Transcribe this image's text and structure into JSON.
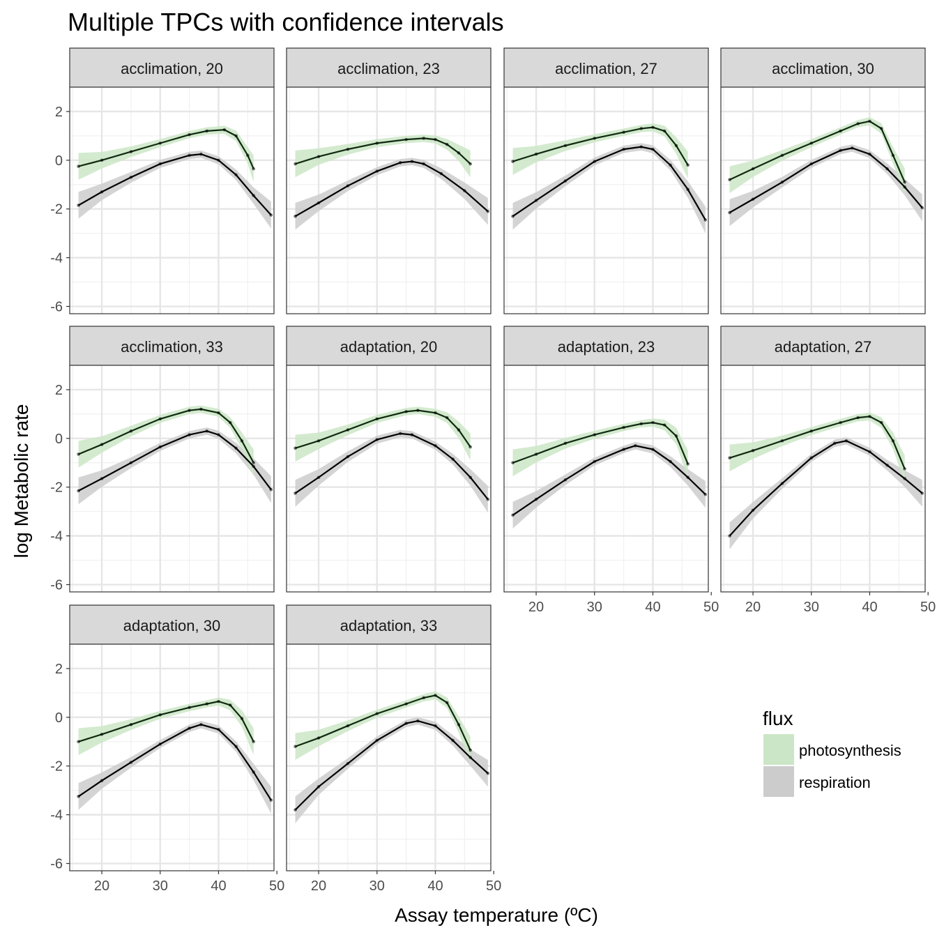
{
  "chart_data": {
    "type": "line",
    "title": "Multiple TPCs with confidence intervals",
    "xlabel": "Assay temperature (ºC)",
    "ylabel": "log Metabolic rate",
    "xlim": [
      14.5,
      49.5
    ],
    "ylim": [
      -6.3,
      3.0
    ],
    "x_ticks": [
      20,
      30,
      40,
      50
    ],
    "y_ticks": [
      2,
      0,
      -2,
      -4,
      -6
    ],
    "grid": true,
    "facet_layout": "wrap, 4 columns",
    "legend": {
      "title": "flux",
      "placement": "right",
      "entries": [
        {
          "label": "photosynthesis",
          "color": "#cbe6c6"
        },
        {
          "label": "respiration",
          "color": "#cccccc"
        }
      ]
    },
    "panels": [
      {
        "label": "acclimation, 20",
        "photosynthesis": {
          "x": [
            16,
            20,
            25,
            30,
            35,
            38,
            41,
            43,
            45,
            46
          ],
          "y": [
            -0.25,
            0.0,
            0.35,
            0.7,
            1.05,
            1.2,
            1.25,
            1.0,
            0.2,
            -0.35
          ]
        },
        "respiration": {
          "x": [
            16,
            20,
            25,
            30,
            35,
            37,
            40,
            43,
            46,
            49
          ],
          "y": [
            -1.85,
            -1.3,
            -0.7,
            -0.15,
            0.2,
            0.25,
            0.0,
            -0.6,
            -1.45,
            -2.25
          ]
        }
      },
      {
        "label": "acclimation, 23",
        "photosynthesis": {
          "x": [
            16,
            20,
            25,
            30,
            35,
            38,
            40,
            42,
            44,
            46
          ],
          "y": [
            -0.15,
            0.15,
            0.45,
            0.7,
            0.85,
            0.9,
            0.85,
            0.65,
            0.3,
            -0.15
          ]
        },
        "respiration": {
          "x": [
            16,
            20,
            25,
            30,
            34,
            36,
            38,
            41,
            45,
            49
          ],
          "y": [
            -2.3,
            -1.75,
            -1.05,
            -0.45,
            -0.1,
            -0.05,
            -0.15,
            -0.55,
            -1.25,
            -2.1
          ]
        }
      },
      {
        "label": "acclimation, 27",
        "photosynthesis": {
          "x": [
            16,
            20,
            25,
            30,
            35,
            38,
            40,
            42,
            44,
            46
          ],
          "y": [
            -0.05,
            0.25,
            0.6,
            0.9,
            1.15,
            1.3,
            1.35,
            1.2,
            0.6,
            -0.2
          ]
        },
        "respiration": {
          "x": [
            16,
            20,
            25,
            30,
            35,
            38,
            40,
            43,
            46,
            49
          ],
          "y": [
            -2.3,
            -1.65,
            -0.85,
            -0.05,
            0.45,
            0.55,
            0.45,
            -0.2,
            -1.2,
            -2.45
          ]
        }
      },
      {
        "label": "acclimation, 30",
        "photosynthesis": {
          "x": [
            16,
            20,
            25,
            30,
            35,
            38,
            40,
            42,
            44,
            46
          ],
          "y": [
            -0.8,
            -0.35,
            0.2,
            0.7,
            1.2,
            1.5,
            1.6,
            1.3,
            0.2,
            -0.9
          ]
        },
        "respiration": {
          "x": [
            16,
            20,
            25,
            30,
            35,
            37,
            40,
            43,
            46,
            49
          ],
          "y": [
            -2.15,
            -1.6,
            -0.9,
            -0.15,
            0.4,
            0.5,
            0.25,
            -0.35,
            -1.1,
            -1.95
          ]
        }
      },
      {
        "label": "acclimation, 33",
        "photosynthesis": {
          "x": [
            16,
            20,
            25,
            30,
            35,
            37,
            40,
            42,
            44,
            46
          ],
          "y": [
            -0.65,
            -0.25,
            0.3,
            0.8,
            1.15,
            1.2,
            1.05,
            0.65,
            -0.1,
            -1.0
          ]
        },
        "respiration": {
          "x": [
            16,
            20,
            25,
            30,
            35,
            38,
            40,
            43,
            46,
            49
          ],
          "y": [
            -2.15,
            -1.65,
            -1.0,
            -0.35,
            0.15,
            0.3,
            0.15,
            -0.4,
            -1.15,
            -2.1
          ]
        }
      },
      {
        "label": "adaptation, 20",
        "photosynthesis": {
          "x": [
            16,
            20,
            25,
            30,
            35,
            37,
            40,
            42,
            44,
            46
          ],
          "y": [
            -0.4,
            -0.1,
            0.35,
            0.8,
            1.1,
            1.15,
            1.05,
            0.85,
            0.35,
            -0.35
          ]
        },
        "respiration": {
          "x": [
            16,
            20,
            25,
            30,
            34,
            36,
            40,
            43,
            46,
            49
          ],
          "y": [
            -2.25,
            -1.6,
            -0.75,
            -0.05,
            0.2,
            0.15,
            -0.3,
            -0.85,
            -1.6,
            -2.5
          ]
        }
      },
      {
        "label": "adaptation, 23",
        "photosynthesis": {
          "x": [
            16,
            20,
            25,
            30,
            35,
            38,
            40,
            42,
            44,
            46
          ],
          "y": [
            -1.0,
            -0.65,
            -0.2,
            0.15,
            0.45,
            0.6,
            0.65,
            0.55,
            0.1,
            -1.05
          ]
        },
        "respiration": {
          "x": [
            16,
            20,
            25,
            30,
            35,
            37,
            40,
            43,
            46,
            49
          ],
          "y": [
            -3.15,
            -2.5,
            -1.7,
            -0.95,
            -0.45,
            -0.3,
            -0.45,
            -0.95,
            -1.6,
            -2.3
          ]
        }
      },
      {
        "label": "adaptation, 27",
        "photosynthesis": {
          "x": [
            16,
            20,
            25,
            30,
            35,
            38,
            40,
            42,
            44,
            46
          ],
          "y": [
            -0.8,
            -0.5,
            -0.1,
            0.3,
            0.65,
            0.85,
            0.9,
            0.65,
            -0.1,
            -1.25
          ]
        },
        "respiration": {
          "x": [
            16,
            20,
            25,
            30,
            34,
            36,
            40,
            43,
            46,
            49
          ],
          "y": [
            -4.0,
            -2.95,
            -1.85,
            -0.8,
            -0.2,
            -0.1,
            -0.55,
            -1.1,
            -1.65,
            -2.25
          ]
        }
      },
      {
        "label": "adaptation, 30",
        "photosynthesis": {
          "x": [
            16,
            20,
            25,
            30,
            35,
            38,
            40,
            42,
            44,
            46
          ],
          "y": [
            -1.0,
            -0.7,
            -0.3,
            0.1,
            0.4,
            0.55,
            0.65,
            0.5,
            -0.05,
            -1.0
          ]
        },
        "respiration": {
          "x": [
            16,
            20,
            25,
            30,
            35,
            37,
            40,
            43,
            46,
            49
          ],
          "y": [
            -3.25,
            -2.6,
            -1.85,
            -1.1,
            -0.45,
            -0.3,
            -0.5,
            -1.2,
            -2.25,
            -3.4
          ]
        }
      },
      {
        "label": "adaptation, 33",
        "photosynthesis": {
          "x": [
            16,
            20,
            25,
            30,
            35,
            38,
            40,
            42,
            44,
            46
          ],
          "y": [
            -1.2,
            -0.85,
            -0.35,
            0.15,
            0.55,
            0.8,
            0.9,
            0.6,
            -0.3,
            -1.35
          ]
        },
        "respiration": {
          "x": [
            16,
            20,
            25,
            30,
            35,
            37,
            40,
            43,
            46,
            49
          ],
          "y": [
            -3.8,
            -2.85,
            -1.9,
            -0.95,
            -0.25,
            -0.15,
            -0.35,
            -0.95,
            -1.65,
            -2.3
          ]
        }
      }
    ]
  }
}
